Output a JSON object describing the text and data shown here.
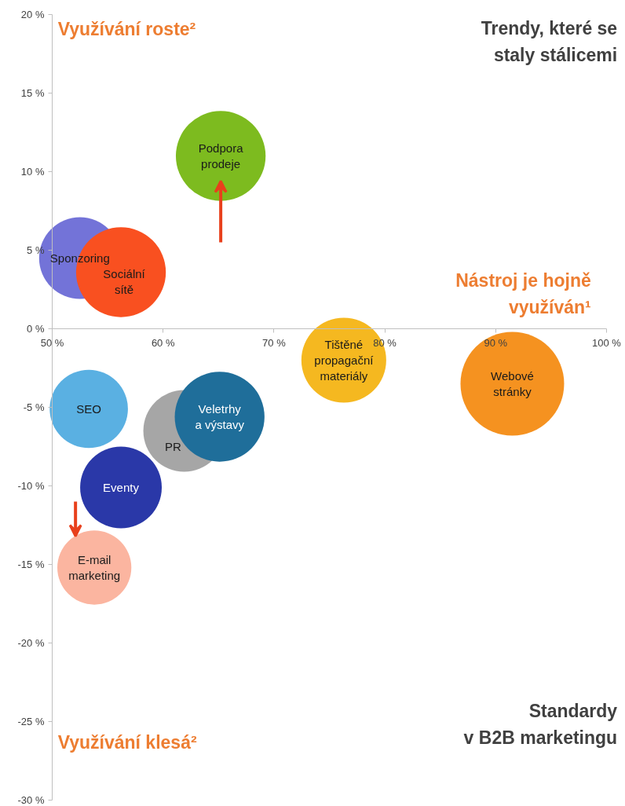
{
  "chart_data": {
    "type": "bubble",
    "xlim": [
      50,
      100
    ],
    "ylim": [
      -30,
      20
    ],
    "xticks": [
      {
        "value": 50,
        "label": "50 %"
      },
      {
        "value": 60,
        "label": "60 %"
      },
      {
        "value": 70,
        "label": "70 %"
      },
      {
        "value": 80,
        "label": "80 %"
      },
      {
        "value": 90,
        "label": "90 %"
      },
      {
        "value": 100,
        "label": "100 %"
      }
    ],
    "yticks": [
      {
        "value": -30,
        "label": "-30 %"
      },
      {
        "value": -25,
        "label": "-25 %"
      },
      {
        "value": -20,
        "label": "-20 %"
      },
      {
        "value": -15,
        "label": "-15 %"
      },
      {
        "value": -10,
        "label": "-10 %"
      },
      {
        "value": -5,
        "label": "-5 %"
      },
      {
        "value": 0,
        "label": "0 %"
      },
      {
        "value": 5,
        "label": "5 %"
      },
      {
        "value": 10,
        "label": "10 %"
      },
      {
        "value": 15,
        "label": "15 %"
      },
      {
        "value": 20,
        "label": "20 %"
      }
    ],
    "grid": false,
    "annotations": [
      "Využívání roste²",
      "Trendy, které se staly stálicemi",
      "Nástroj je hojně využíván¹",
      "Využívání klesá²",
      "Standardy v B2B marketingu"
    ],
    "series": [
      {
        "name": "Podpora prodeje",
        "color": "#7dbb1f",
        "x": [
          65.2
        ],
        "values": [
          11
        ],
        "sizes": [
          0.75
        ]
      },
      {
        "name": "Sponzoring",
        "color": "#7373d8",
        "x": [
          52.5
        ],
        "values": [
          4.5
        ],
        "sizes": [
          0.62
        ]
      },
      {
        "name": "Sociální sítě",
        "color": "#f95020",
        "x": [
          56.2
        ],
        "values": [
          3.6
        ],
        "sizes": [
          0.75
        ]
      },
      {
        "name": "Tištěné propagační materiály",
        "color": "#f5b820",
        "x": [
          76.3
        ],
        "values": [
          -2
        ],
        "sizes": [
          0.67
        ]
      },
      {
        "name": "Webové stránky",
        "color": "#f59220",
        "x": [
          91.5
        ],
        "values": [
          -3.5
        ],
        "sizes": [
          1
        ]
      },
      {
        "name": "SEO",
        "color": "#5ab0e2",
        "x": [
          53.3
        ],
        "values": [
          -5.1
        ],
        "sizes": [
          0.57
        ]
      },
      {
        "name": "PR",
        "color": "#a6a6a6",
        "x": [
          61.9
        ],
        "values": [
          -6.5
        ],
        "sizes": [
          0.62
        ]
      },
      {
        "name": "Veletrhy a výstavy",
        "color": "#1f6e9a",
        "x": [
          65.1
        ],
        "values": [
          -5.6
        ],
        "sizes": [
          0.75
        ]
      },
      {
        "name": "Eventy",
        "color": "#2a38a8",
        "x": [
          56.2
        ],
        "values": [
          -10.1
        ],
        "sizes": [
          0.62
        ]
      },
      {
        "name": "E-mail marketing",
        "color": "#fbb5a0",
        "x": [
          53.8
        ],
        "values": [
          -15.2
        ],
        "sizes": [
          0.51
        ]
      }
    ]
  }
}
